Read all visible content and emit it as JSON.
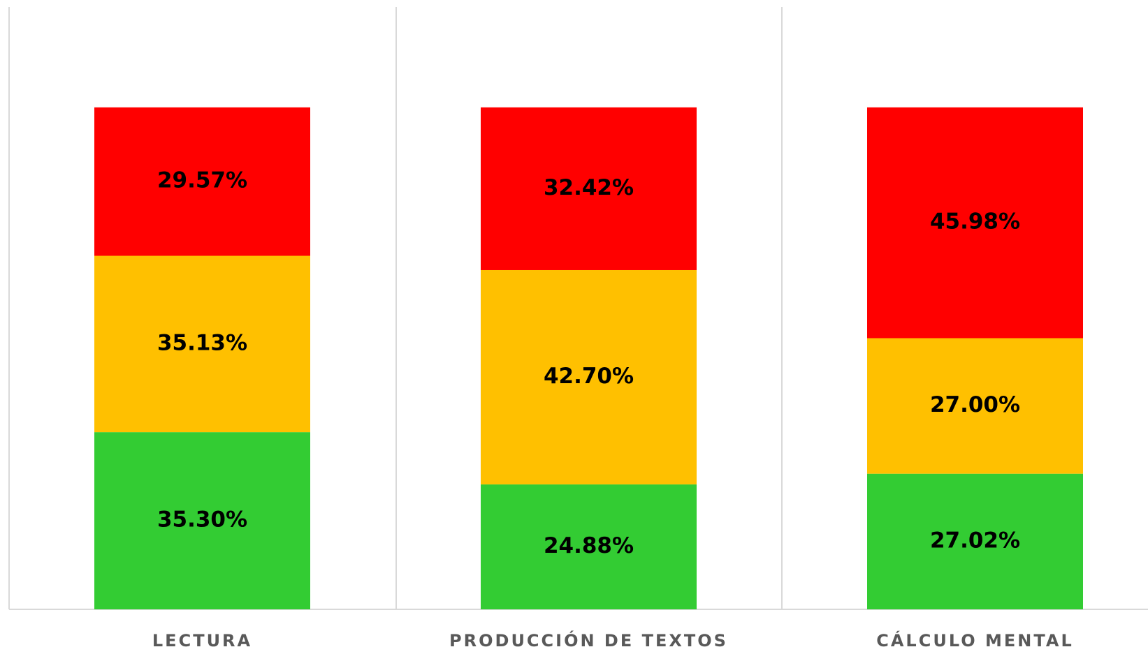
{
  "chart_data": {
    "type": "stacked_bar",
    "categories": [
      "LECTURA",
      "PRODUCCIÓN DE TEXTOS",
      "CÁLCULO MENTAL"
    ],
    "series": [
      {
        "color": "#33cc33",
        "values": [
          35.3,
          24.88,
          27.02
        ],
        "value_labels": [
          "35.30%",
          "24.88%",
          "27.02%"
        ]
      },
      {
        "color": "#ffc000",
        "values": [
          35.13,
          42.7,
          27.0
        ],
        "value_labels": [
          "35.13%",
          "42.70%",
          "27.00%"
        ]
      },
      {
        "color": "#ff0000",
        "values": [
          29.57,
          32.42,
          45.98
        ],
        "value_labels": [
          "29.57%",
          "32.42%",
          "45.98%"
        ]
      }
    ],
    "ylim": [
      0,
      120
    ]
  }
}
